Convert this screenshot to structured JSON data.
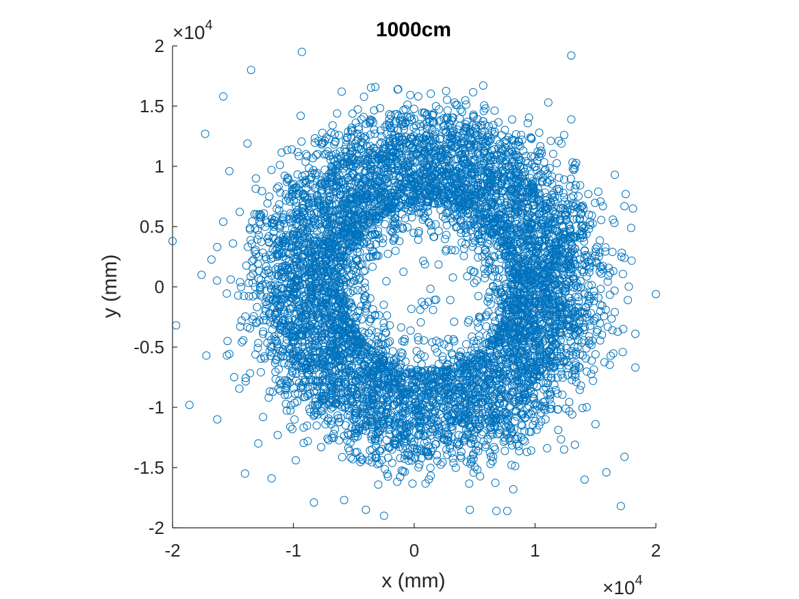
{
  "chart_data": {
    "type": "scatter",
    "title": "1000cm",
    "xlabel": "x (mm)",
    "ylabel": "y (mm)",
    "xlim": [
      -20000,
      20000
    ],
    "ylim": [
      -20000,
      20000
    ],
    "xticks": [
      -20000,
      -10000,
      0,
      10000,
      20000
    ],
    "yticks": [
      -20000,
      -15000,
      -10000,
      -5000,
      0,
      5000,
      10000,
      15000,
      20000
    ],
    "xtick_labels": [
      "-2",
      "-1",
      "0",
      "1",
      "2"
    ],
    "ytick_labels": [
      "-2",
      "-1.5",
      "-1",
      "-0.5",
      "0",
      "0.5",
      "1",
      "1.5",
      "2"
    ],
    "x_exponent_label": "×10",
    "y_exponent_label": "×10",
    "exponent": "4",
    "marker": "open-circle",
    "grid": false,
    "legend": "none",
    "series_color": "#0072BD",
    "distribution": {
      "shape": "annulus",
      "center": [
        1000,
        0
      ],
      "dense_inner_radius": 7000,
      "dense_outer_radius": 12500
    },
    "outlier_points": [
      [
        -9300,
        19500
      ],
      [
        13000,
        19200
      ],
      [
        -13500,
        18000
      ],
      [
        -15800,
        15800
      ],
      [
        -17300,
        12700
      ],
      [
        -20000,
        3800
      ],
      [
        -19700,
        -3200
      ],
      [
        -17200,
        -5700
      ],
      [
        -18600,
        -9800
      ],
      [
        -16300,
        -11000
      ],
      [
        -14000,
        -15500
      ],
      [
        -11800,
        -15900
      ],
      [
        -8300,
        -17900
      ],
      [
        -5800,
        -17700
      ],
      [
        -4000,
        -18500
      ],
      [
        -2500,
        -19000
      ],
      [
        4600,
        -18500
      ],
      [
        6800,
        -18600
      ],
      [
        7700,
        -18600
      ],
      [
        8200,
        -16800
      ],
      [
        14100,
        -16000
      ],
      [
        15900,
        -15400
      ],
      [
        17400,
        -14100
      ],
      [
        17100,
        -18200
      ],
      [
        18300,
        -6700
      ],
      [
        18300,
        -3900
      ],
      [
        17300,
        -3500
      ],
      [
        16400,
        -3600
      ],
      [
        20000,
        -600
      ],
      [
        17400,
        2400
      ],
      [
        16400,
        2900
      ],
      [
        17400,
        6700
      ],
      [
        17500,
        7700
      ],
      [
        18100,
        6500
      ],
      [
        16600,
        9300
      ],
      [
        14400,
        7700
      ],
      [
        13200,
        9700
      ],
      [
        13000,
        13900
      ],
      [
        11100,
        15300
      ],
      [
        -13800,
        11900
      ],
      [
        -15300,
        9600
      ],
      [
        -15800,
        5400
      ],
      [
        -16300,
        3300
      ],
      [
        -17600,
        1000
      ],
      [
        -15000,
        3600
      ],
      [
        -14400,
        -3300
      ],
      [
        -15500,
        -5700
      ],
      [
        -14900,
        -7500
      ],
      [
        -12900,
        -13000
      ],
      [
        -11300,
        -12300
      ],
      [
        -9800,
        -14400
      ],
      [
        -7700,
        -13300
      ],
      [
        -5100,
        -14300
      ],
      [
        15000,
        -5600
      ],
      [
        14800,
        -7800
      ],
      [
        15000,
        -11400
      ],
      [
        13300,
        -13100
      ],
      [
        15400,
        -1500
      ],
      [
        13800,
        -8200
      ],
      [
        12400,
        -13500
      ],
      [
        11000,
        -13400
      ],
      [
        -13100,
        9000
      ],
      [
        -9400,
        14200
      ],
      [
        -6000,
        16200
      ]
    ]
  }
}
